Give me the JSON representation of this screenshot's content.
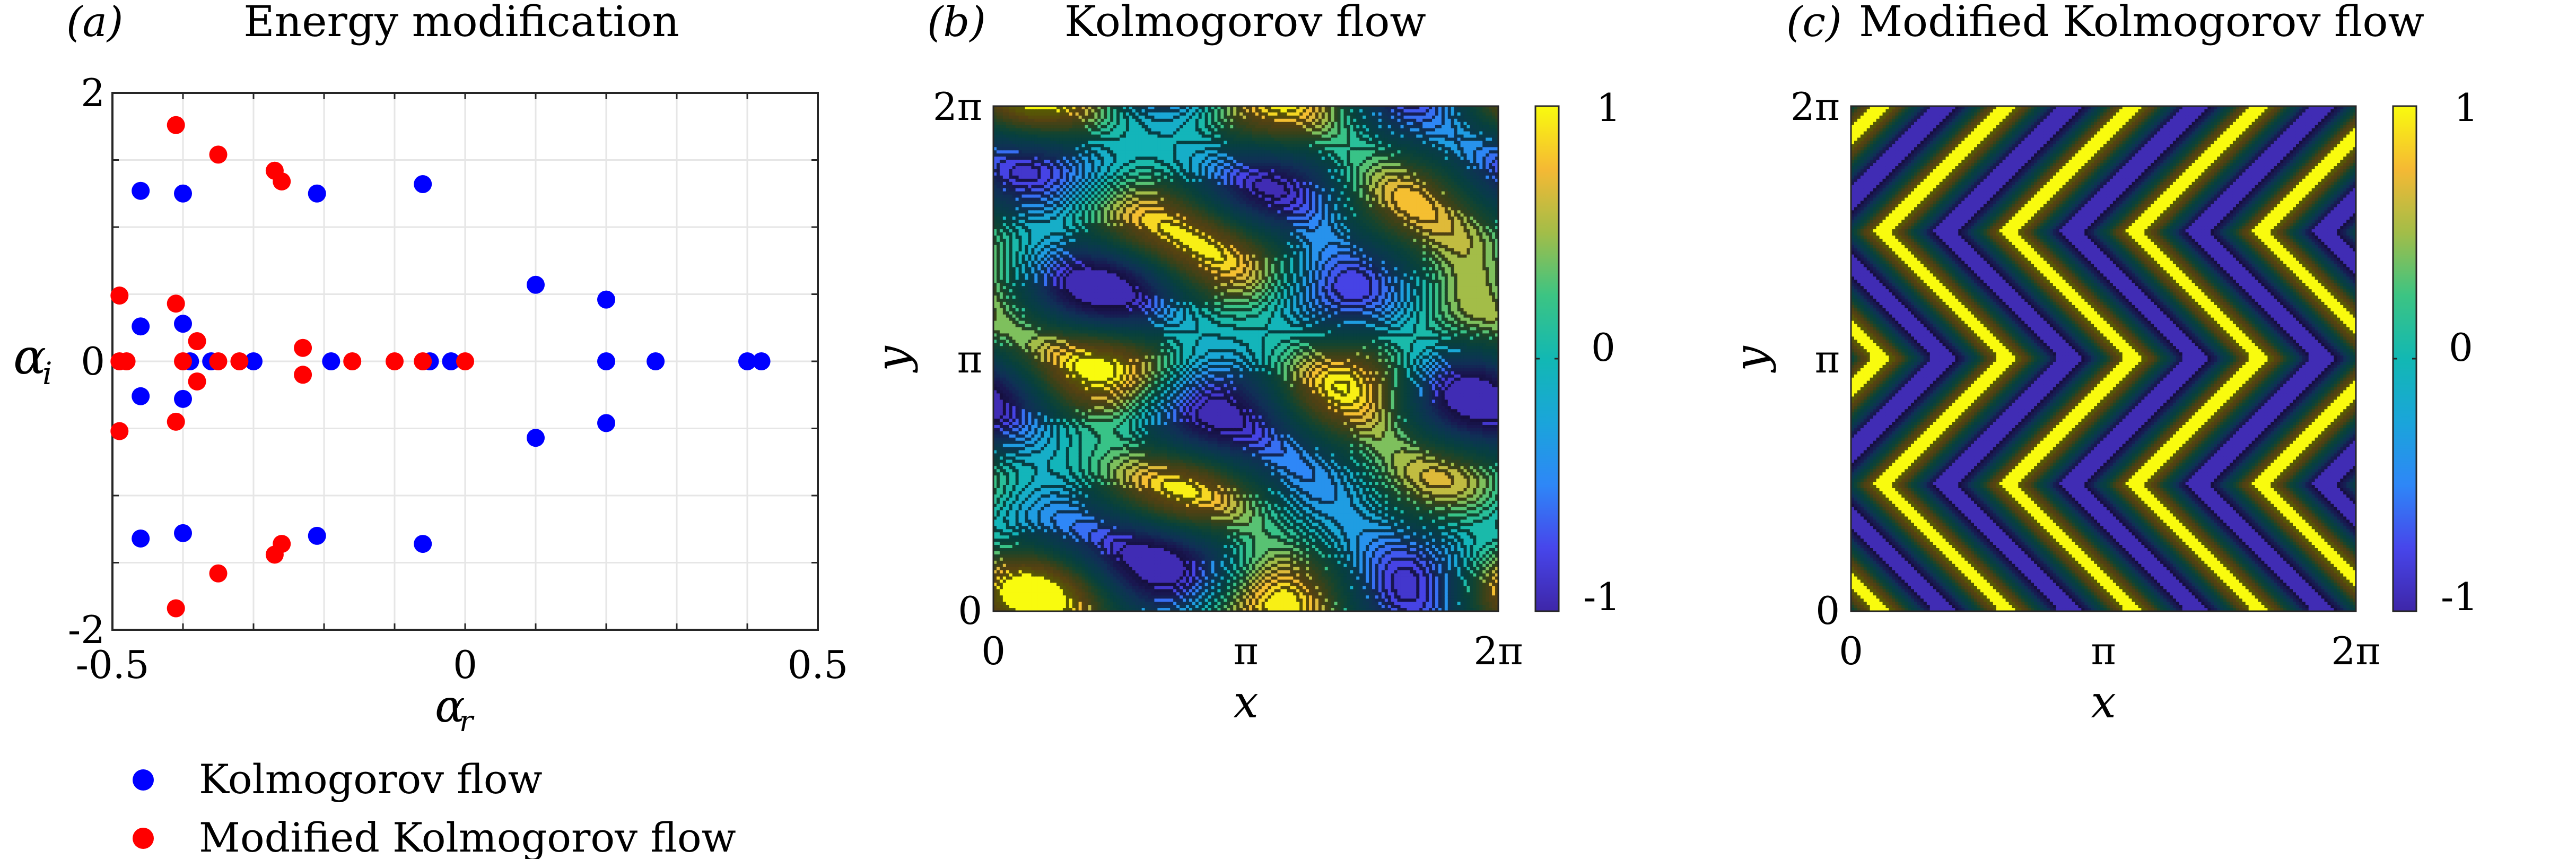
{
  "panels": {
    "a": {
      "tag": "(a)",
      "title": "Energy modification"
    },
    "b": {
      "tag": "(b)",
      "title": "Kolmogorov flow"
    },
    "c": {
      "tag": "(c)",
      "title": "Modified Kolmogorov flow"
    }
  },
  "colorbar": {
    "ticks": [
      "1",
      "0",
      "-1"
    ],
    "colormap": "parula"
  },
  "field_axes": {
    "xlabel": "x",
    "ylabel": "y",
    "xticks": [
      "0",
      "π",
      "2π"
    ],
    "yticks": [
      "0",
      "π",
      "2π"
    ]
  },
  "colors": {
    "kolmogorov": "#0000ff",
    "modified": "#ff0000"
  },
  "chart_data": [
    {
      "type": "scatter",
      "title": "Energy modification",
      "xlabel": "α_r",
      "ylabel": "α_i",
      "xlim": [
        -0.5,
        0.5
      ],
      "ylim": [
        -2,
        2
      ],
      "xticks": [
        "-0.5",
        "0",
        "0.5"
      ],
      "yticks": [
        "-2",
        "0",
        "2"
      ],
      "grid": true,
      "legend_position": "below",
      "series": [
        {
          "name": "Kolmogorov flow",
          "color": "#0000ff",
          "points": [
            [
              -0.46,
              1.27
            ],
            [
              -0.4,
              1.25
            ],
            [
              -0.21,
              1.25
            ],
            [
              -0.06,
              1.32
            ],
            [
              -0.46,
              -1.32
            ],
            [
              -0.4,
              -1.28
            ],
            [
              -0.21,
              -1.3
            ],
            [
              -0.06,
              -1.36
            ],
            [
              0.1,
              0.57
            ],
            [
              0.1,
              -0.57
            ],
            [
              0.2,
              0.46
            ],
            [
              0.2,
              -0.46
            ],
            [
              -0.46,
              0.26
            ],
            [
              -0.46,
              -0.26
            ],
            [
              -0.4,
              0.28
            ],
            [
              -0.4,
              -0.28
            ],
            [
              -0.39,
              0
            ],
            [
              -0.36,
              0
            ],
            [
              -0.3,
              0
            ],
            [
              -0.19,
              0
            ],
            [
              -0.05,
              0
            ],
            [
              -0.02,
              0
            ],
            [
              0.2,
              0
            ],
            [
              0.27,
              0
            ],
            [
              0.4,
              0
            ],
            [
              0.42,
              0
            ]
          ]
        },
        {
          "name": "Modified Kolmogorov flow",
          "color": "#ff0000",
          "points": [
            [
              -0.41,
              1.76
            ],
            [
              -0.35,
              1.54
            ],
            [
              -0.27,
              1.42
            ],
            [
              -0.26,
              1.34
            ],
            [
              -0.41,
              -1.84
            ],
            [
              -0.35,
              -1.58
            ],
            [
              -0.27,
              -1.44
            ],
            [
              -0.26,
              -1.36
            ],
            [
              -0.49,
              0.49
            ],
            [
              -0.49,
              -0.52
            ],
            [
              -0.41,
              0.43
            ],
            [
              -0.41,
              -0.45
            ],
            [
              -0.38,
              0.15
            ],
            [
              -0.38,
              -0.15
            ],
            [
              -0.23,
              0.1
            ],
            [
              -0.23,
              -0.1
            ],
            [
              -0.49,
              0
            ],
            [
              -0.48,
              0
            ],
            [
              -0.4,
              0
            ],
            [
              -0.35,
              0
            ],
            [
              -0.32,
              0
            ],
            [
              -0.16,
              0
            ],
            [
              -0.1,
              0
            ],
            [
              -0.06,
              0
            ],
            [
              0,
              0
            ]
          ]
        }
      ]
    },
    {
      "type": "heatmap",
      "title": "Kolmogorov flow",
      "xlabel": "x",
      "ylabel": "y",
      "xlim": [
        "0",
        "2π"
      ],
      "ylim": [
        "0",
        "2π"
      ],
      "colorbar_range": [
        -1,
        1
      ],
      "colormap": "parula",
      "field": "vorticity, contour-filled"
    },
    {
      "type": "heatmap",
      "title": "Modified Kolmogorov flow",
      "xlabel": "x",
      "ylabel": "y",
      "xlim": [
        "0",
        "2π"
      ],
      "ylim": [
        "0",
        "2π"
      ],
      "colorbar_range": [
        -1,
        1
      ],
      "colormap": "parula",
      "field": "vorticity, contour-filled"
    }
  ]
}
